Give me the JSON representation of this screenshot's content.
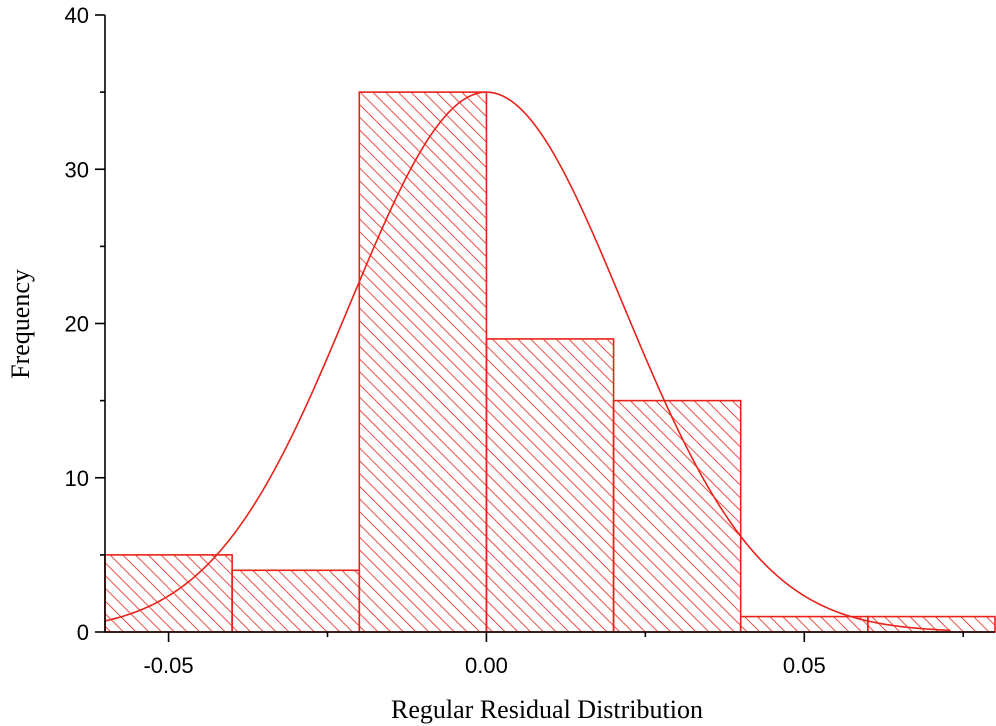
{
  "chart_data": {
    "type": "bar",
    "title": "",
    "xlabel": "Regular Residual Distribution",
    "ylabel": "Frequency",
    "xlim": [
      -0.06,
      0.08
    ],
    "ylim": [
      0,
      40
    ],
    "x_ticks": [
      {
        "value": -0.05,
        "label": "-0.05"
      },
      {
        "value": 0.0,
        "label": "0.00"
      },
      {
        "value": 0.05,
        "label": "0.05"
      }
    ],
    "x_minor_ticks": [
      -0.025,
      0.025,
      0.075
    ],
    "y_ticks": [
      {
        "value": 0,
        "label": "0"
      },
      {
        "value": 10,
        "label": "10"
      },
      {
        "value": 20,
        "label": "20"
      },
      {
        "value": 30,
        "label": "30"
      },
      {
        "value": 40,
        "label": "40"
      }
    ],
    "y_minor_ticks": [
      5,
      15,
      25,
      35
    ],
    "bins": [
      {
        "x0": -0.06,
        "x1": -0.04,
        "count": 5
      },
      {
        "x0": -0.04,
        "x1": -0.02,
        "count": 4
      },
      {
        "x0": -0.02,
        "x1": 0.0,
        "count": 35
      },
      {
        "x0": 0.0,
        "x1": 0.02,
        "count": 19
      },
      {
        "x0": 0.02,
        "x1": 0.04,
        "count": 15
      },
      {
        "x0": 0.04,
        "x1": 0.06,
        "count": 1
      },
      {
        "x0": 0.06,
        "x1": 0.08,
        "count": 1
      }
    ],
    "fit_curve": {
      "type": "normal",
      "mean": 0.0,
      "sigma": 0.0215,
      "peak": 35,
      "x_start": -0.06,
      "x_end": 0.073
    },
    "grid": false,
    "legend": "none",
    "colors": {
      "bar": "#e8231a",
      "curve": "#e8231a",
      "axis": "#000000"
    }
  }
}
